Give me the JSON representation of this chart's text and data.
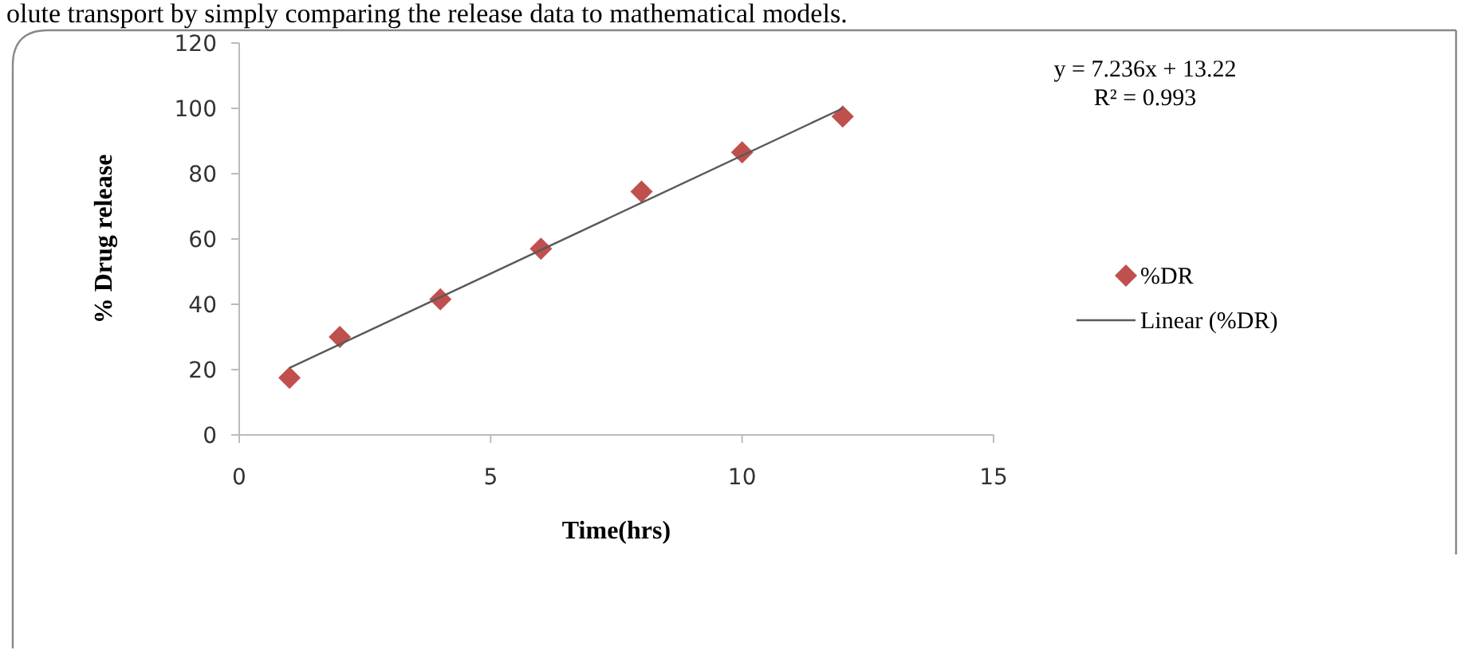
{
  "chart_data": {
    "type": "scatter",
    "xlabel": "Time(hrs)",
    "ylabel": "% Drug release",
    "xlim": [
      0,
      15
    ],
    "xticks": [
      0,
      5,
      10,
      15
    ],
    "ylim": [
      0,
      120
    ],
    "yticks": [
      0,
      20,
      40,
      60,
      80,
      100,
      120
    ],
    "grid": false,
    "legend": "right",
    "marker": "diamond",
    "annotations": [
      "olute transport by simply comparing the release data to mathematical models.",
      "y = 7.236x + 13.22",
      "R² = 0.993"
    ],
    "series": [
      {
        "name": "%DR",
        "color": "#c0504d",
        "x": [
          1,
          2,
          4,
          6,
          8,
          10,
          12
        ],
        "values": [
          17.5,
          30,
          41.5,
          57,
          74.5,
          86.5,
          97.5
        ]
      },
      {
        "name": "Linear (%DR)",
        "type": "line",
        "color": "#595959",
        "line_style": "solid",
        "marker": "none",
        "x": [
          1,
          12
        ],
        "values": [
          20.5,
          100
        ]
      }
    ]
  }
}
